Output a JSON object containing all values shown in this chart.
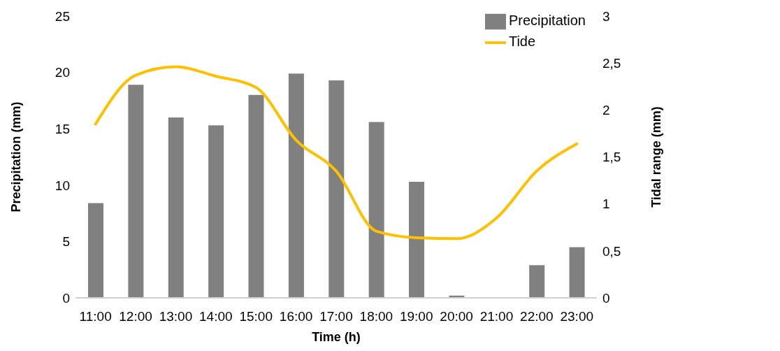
{
  "chart_data": {
    "type": "bar",
    "categories": [
      "11:00",
      "12:00",
      "13:00",
      "14:00",
      "15:00",
      "16:00",
      "17:00",
      "18:00",
      "19:00",
      "20:00",
      "21:00",
      "22:00",
      "23:00"
    ],
    "xlabel": "Time (h)",
    "ylabel": "Precipitation (mm)",
    "y2label": "Tidal  range (mm)",
    "series": [
      {
        "name": "Precipitation",
        "color": "#808080",
        "values": [
          8.4,
          18.9,
          16.0,
          15.3,
          18.0,
          19.9,
          19.3,
          15.6,
          10.3,
          0.2,
          0,
          2.9,
          4.5
        ]
      },
      {
        "name": "Tide",
        "type": "line",
        "axis": "y2",
        "color": "#ffc000",
        "values": [
          1.85,
          2.37,
          2.46,
          2.36,
          2.24,
          1.68,
          1.35,
          0.71,
          0.64,
          0.63,
          0.85,
          1.35,
          1.64
        ]
      }
    ],
    "ylim": [
      0,
      25
    ],
    "yticks": [
      0,
      5,
      10,
      15,
      20,
      25
    ],
    "y2lim": [
      0,
      3
    ],
    "y2ticks": [
      0,
      {
        "value": 0.5,
        "label": "0,5"
      },
      1,
      {
        "value": 1.5,
        "label": "1,5"
      },
      2,
      {
        "value": 2.5,
        "label": "2,5"
      },
      3
    ],
    "grid": false,
    "legend": "top right",
    "marker": "none",
    "line_style": "solid"
  }
}
